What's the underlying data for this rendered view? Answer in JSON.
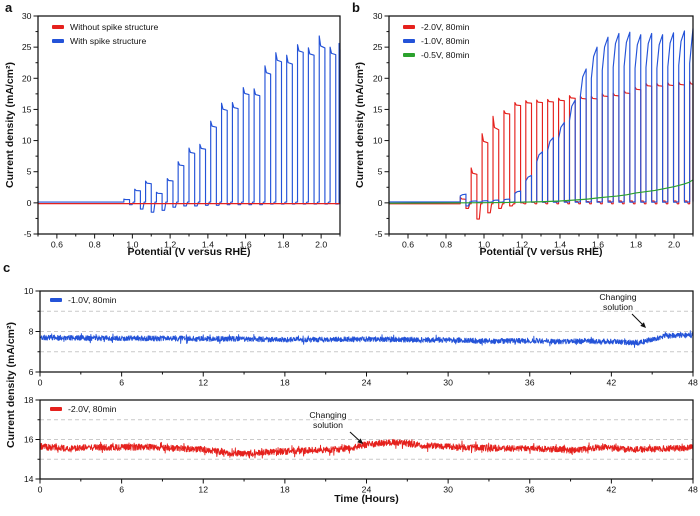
{
  "panels": {
    "a": "a",
    "b": "b",
    "c": "c"
  },
  "colors": {
    "red": "#e5211d",
    "blue": "#2453d8",
    "green": "#2ba12d",
    "grid": "#c9c9c9",
    "ink": "#111111"
  },
  "chart_data": [
    {
      "id": "a",
      "type": "line",
      "title": "",
      "xlabel": "Potential (V versus RHE)",
      "ylabel": "Current density (mA/cm²)",
      "xlim": [
        0.5,
        2.1
      ],
      "ylim": [
        -5,
        30
      ],
      "xticks": [
        0.6,
        0.8,
        1.0,
        1.2,
        1.4,
        1.6,
        1.8,
        2.0
      ],
      "xtick_labels": [
        "0.6",
        "0.8",
        "1.0",
        "1.2",
        "1.4",
        "1.6",
        "1.8",
        "2.0"
      ],
      "yticks": [
        -5,
        0,
        5,
        10,
        15,
        20,
        25,
        30
      ],
      "ytick_labels": [
        "-5",
        "0",
        "5",
        "10",
        "15",
        "20",
        "25",
        "30"
      ],
      "grid": false,
      "legend_position": "upper-left",
      "legend": [
        {
          "label": "Without spike structure",
          "color": "red"
        },
        {
          "label": "With spike structure",
          "color": "blue"
        }
      ],
      "series": [
        {
          "name": "With spike structure",
          "color": "blue",
          "type": "pulses",
          "shape": "decay",
          "base": 0.12,
          "pulse_width": 0.03,
          "pulse_v": [
            0.955,
            1.0125,
            1.07,
            1.1275,
            1.185,
            1.2425,
            1.3,
            1.3575,
            1.415,
            1.4725,
            1.53,
            1.5875,
            1.645,
            1.7025,
            1.76,
            1.8175,
            1.875,
            1.9325,
            1.99,
            2.0475,
            2.095
          ],
          "pulse_peak": [
            0.6,
            2.2,
            3.5,
            1.7,
            3.9,
            6.6,
            8.8,
            9.4,
            13.1,
            16.0,
            16.1,
            18.5,
            18.3,
            22.0,
            24.1,
            23.7,
            25.4,
            24.9,
            26.8,
            25.0,
            25.6
          ],
          "pulse_under": [
            -0.3,
            -1.0,
            -1.5,
            -1.2,
            -0.7,
            -0.5,
            -0.5,
            -0.4,
            -0.4,
            -0.3,
            -0.3,
            -0.3,
            -0.3,
            -0.2,
            -0.2,
            -0.2,
            -0.2,
            -0.2,
            -0.2,
            -0.2,
            -0.2
          ],
          "pulse_decay": [
            0.1,
            0.1,
            0.1,
            0.1,
            0.08,
            0.08,
            0.08,
            0.07,
            0.06,
            0.06,
            0.05,
            0.05,
            0.05,
            0.05,
            0.05,
            0.05,
            0.04,
            0.04,
            0.06,
            0.04,
            0.04
          ]
        },
        {
          "name": "Without spike structure",
          "color": "red",
          "type": "flat",
          "y": -0.12
        }
      ]
    },
    {
      "id": "b",
      "type": "line",
      "title": "",
      "xlabel": "Potential (V versus RHE)",
      "ylabel": "Current density (mA/cm²)",
      "xlim": [
        0.5,
        2.1
      ],
      "ylim": [
        -5,
        30
      ],
      "xticks": [
        0.6,
        0.8,
        1.0,
        1.2,
        1.4,
        1.6,
        1.8,
        2.0
      ],
      "xtick_labels": [
        "0.6",
        "0.8",
        "1.0",
        "1.2",
        "1.4",
        "1.6",
        "1.8",
        "2.0"
      ],
      "yticks": [
        -5,
        0,
        5,
        10,
        15,
        20,
        25,
        30
      ],
      "ytick_labels": [
        "-5",
        "0",
        "5",
        "10",
        "15",
        "20",
        "25",
        "30"
      ],
      "grid": false,
      "legend_position": "upper-left",
      "legend": [
        {
          "label": "-2.0V, 80min",
          "color": "red"
        },
        {
          "label": "-1.0V, 80min",
          "color": "blue"
        },
        {
          "label": "-0.5V, 80min",
          "color": "green"
        }
      ],
      "series": [
        {
          "name": "-2.0V, 80min",
          "color": "red",
          "type": "pulses",
          "shape": "decay",
          "base": -0.15,
          "pulse_width": 0.03,
          "pulse_v": [
            0.875,
            0.9325,
            0.99,
            1.0475,
            1.105,
            1.1625,
            1.22,
            1.2775,
            1.335,
            1.3925,
            1.45,
            1.5075,
            1.565,
            1.6225,
            1.68,
            1.7375,
            1.795,
            1.8525,
            1.91,
            1.9675,
            2.025,
            2.0825
          ],
          "pulse_peak": [
            0.9,
            5.6,
            11.1,
            13.9,
            14.8,
            16.1,
            16.4,
            16.5,
            16.6,
            16.8,
            17.2,
            17.1,
            17.1,
            17.5,
            17.6,
            18.0,
            18.6,
            19.2,
            19.2,
            19.3,
            19.4,
            19.5
          ],
          "pulse_under": [
            -0.9,
            -2.6,
            -1.6,
            -0.9,
            -0.5,
            0.0,
            0.1,
            0.1,
            0.2,
            0.2,
            0.2,
            0.2,
            0.2,
            0.3,
            0.3,
            0.3,
            0.3,
            0.3,
            0.3,
            0.3,
            0.3,
            0.3
          ],
          "pulse_decay": [
            0.3,
            0.15,
            0.11,
            0.13,
            0.03,
            0.025,
            0.02,
            0.02,
            0.02,
            0.02,
            0.02,
            0.02,
            0.02,
            0.02,
            0.02,
            0.02,
            0.02,
            0.02,
            0.02,
            0.02,
            0.02,
            0.02
          ]
        },
        {
          "name": "-1.0V, 80min",
          "color": "blue",
          "type": "pulses",
          "shape": "rise",
          "base": 0.15,
          "pulse_width": 0.03,
          "pulse_v": [
            0.875,
            0.9325,
            0.99,
            1.0475,
            1.105,
            1.1625,
            1.22,
            1.2775,
            1.335,
            1.3925,
            1.45,
            1.5075,
            1.565,
            1.6225,
            1.68,
            1.7375,
            1.795,
            1.8525,
            1.91,
            1.9675,
            2.025,
            2.0825
          ],
          "pulse_peak": [
            1.4,
            0.3,
            0.35,
            0.45,
            0.6,
            1.9,
            4.4,
            8.2,
            10.5,
            12.9,
            16.5,
            21.5,
            25.0,
            26.6,
            27.2,
            27.4,
            27.0,
            27.2,
            27.0,
            27.3,
            27.6,
            28.0
          ],
          "pulse_under": [
            -0.5,
            0.1,
            0.1,
            0.1,
            0.1,
            0.1,
            0.1,
            0.1,
            0.1,
            0.1,
            0.1,
            0.1,
            0.1,
            0.1,
            0.1,
            0.1,
            0.1,
            0.1,
            0.1,
            0.1,
            0.1,
            0.1
          ]
        },
        {
          "name": "-0.5V, 80min",
          "color": "green",
          "type": "line",
          "points": [
            [
              0.5,
              -0.05
            ],
            [
              0.9,
              0.0
            ],
            [
              1.1,
              0.05
            ],
            [
              1.2,
              0.1
            ],
            [
              1.3,
              0.18
            ],
            [
              1.4,
              0.3
            ],
            [
              1.5,
              0.5
            ],
            [
              1.55,
              0.62
            ],
            [
              1.6,
              0.8
            ],
            [
              1.65,
              0.95
            ],
            [
              1.7,
              1.1
            ],
            [
              1.75,
              1.3
            ],
            [
              1.8,
              1.6
            ],
            [
              1.85,
              1.8
            ],
            [
              1.9,
              2.0
            ],
            [
              1.95,
              2.3
            ],
            [
              2.0,
              2.6
            ],
            [
              2.05,
              3.0
            ],
            [
              2.08,
              3.3
            ],
            [
              2.1,
              3.7
            ]
          ]
        }
      ]
    },
    {
      "id": "c_top",
      "type": "line",
      "title": "",
      "xlabel": "",
      "ylabel": "Current density (mA/cm²)",
      "xlim": [
        0,
        48
      ],
      "ylim": [
        6,
        10
      ],
      "xticks": [
        0,
        6,
        12,
        18,
        24,
        30,
        36,
        42,
        48
      ],
      "xtick_labels": [
        "0",
        "6",
        "12",
        "18",
        "24",
        "30",
        "36",
        "42",
        "48"
      ],
      "yticks": [
        6,
        8,
        10
      ],
      "ytick_labels": [
        "6",
        "8",
        "10"
      ],
      "gridlines": [
        7,
        8,
        9
      ],
      "legend_position": "upper-left",
      "legend": [
        {
          "label": "-1.0V, 80min",
          "color": "blue"
        }
      ],
      "annotation": {
        "text": "Changing\nsolution",
        "x_hours": 45
      },
      "series": [
        {
          "name": "-1.0V, 80min",
          "color": "blue",
          "type": "noisy",
          "noise": 0.13,
          "seed": 11,
          "keypoints": [
            [
              0,
              7.7
            ],
            [
              3,
              7.68
            ],
            [
              6,
              7.66
            ],
            [
              9,
              7.66
            ],
            [
              12,
              7.64
            ],
            [
              15,
              7.63
            ],
            [
              18,
              7.6
            ],
            [
              21,
              7.6
            ],
            [
              24,
              7.62
            ],
            [
              27,
              7.6
            ],
            [
              30,
              7.58
            ],
            [
              33,
              7.52
            ],
            [
              36,
              7.55
            ],
            [
              38,
              7.5
            ],
            [
              40,
              7.52
            ],
            [
              42,
              7.5
            ],
            [
              44,
              7.45
            ],
            [
              45,
              7.6
            ],
            [
              46,
              7.78
            ],
            [
              47,
              7.8
            ],
            [
              48,
              7.82
            ]
          ]
        }
      ]
    },
    {
      "id": "c_bottom",
      "type": "line",
      "title": "",
      "xlabel": "Time (Hours)",
      "ylabel": "Current density (mA/cm²)",
      "xlim": [
        0,
        48
      ],
      "ylim": [
        14,
        18
      ],
      "xticks": [
        0,
        6,
        12,
        18,
        24,
        30,
        36,
        42,
        48
      ],
      "xtick_labels": [
        "0",
        "6",
        "12",
        "18",
        "24",
        "30",
        "36",
        "42",
        "48"
      ],
      "yticks": [
        14,
        16,
        18
      ],
      "ytick_labels": [
        "14",
        "16",
        "18"
      ],
      "gridlines": [
        15,
        16,
        17
      ],
      "legend_position": "upper-left",
      "legend": [
        {
          "label": "-2.0V, 80min",
          "color": "red"
        }
      ],
      "annotation": {
        "text": "Changing\nsolution",
        "x_hours": 24
      },
      "series": [
        {
          "name": "-2.0V, 80min",
          "color": "red",
          "type": "noisy",
          "noise": 0.16,
          "seed": 23,
          "keypoints": [
            [
              0,
              15.65
            ],
            [
              2,
              15.55
            ],
            [
              4,
              15.6
            ],
            [
              6,
              15.6
            ],
            [
              8,
              15.62
            ],
            [
              10,
              15.55
            ],
            [
              12,
              15.5
            ],
            [
              13,
              15.4
            ],
            [
              14,
              15.32
            ],
            [
              15,
              15.3
            ],
            [
              16,
              15.35
            ],
            [
              18,
              15.4
            ],
            [
              20,
              15.45
            ],
            [
              22,
              15.5
            ],
            [
              23,
              15.6
            ],
            [
              24,
              15.75
            ],
            [
              25,
              15.8
            ],
            [
              26,
              15.85
            ],
            [
              27,
              15.8
            ],
            [
              28,
              15.7
            ],
            [
              30,
              15.65
            ],
            [
              32,
              15.6
            ],
            [
              34,
              15.55
            ],
            [
              36,
              15.55
            ],
            [
              38,
              15.5
            ],
            [
              39,
              15.45
            ],
            [
              40,
              15.5
            ],
            [
              41,
              15.6
            ],
            [
              42,
              15.6
            ],
            [
              43,
              15.5
            ],
            [
              44,
              15.5
            ],
            [
              45,
              15.5
            ],
            [
              46,
              15.55
            ],
            [
              47,
              15.55
            ],
            [
              48,
              15.6
            ]
          ]
        }
      ]
    }
  ]
}
